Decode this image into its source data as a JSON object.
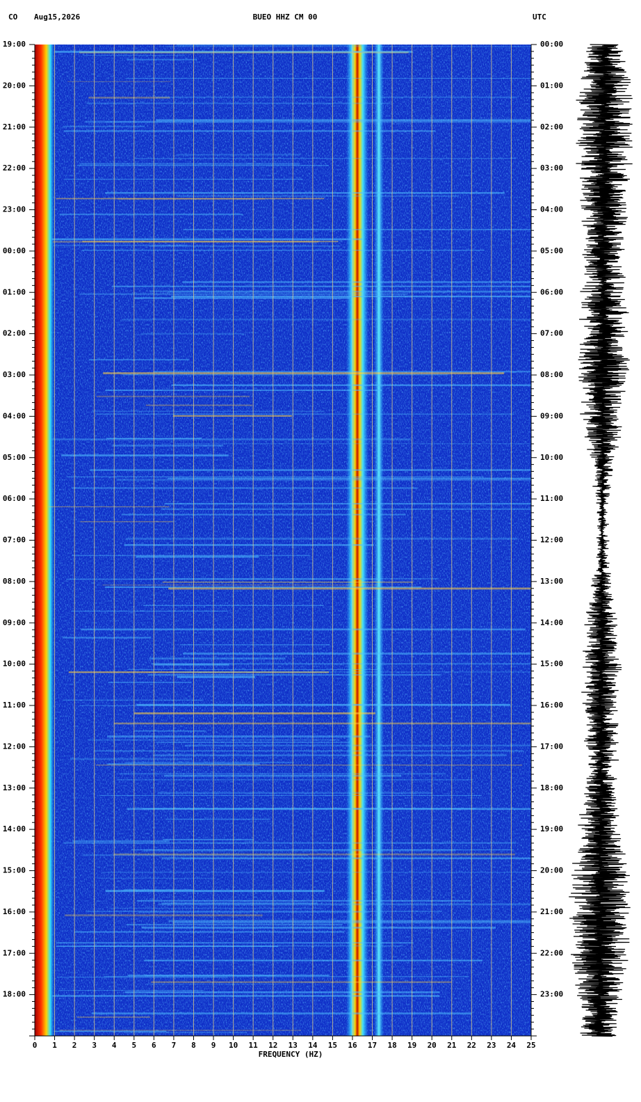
{
  "chart_data": {
    "type": "spectrogram",
    "network": "CO",
    "date": "Aug15,2026",
    "title": "BUEO HHZ CM 00",
    "timezone": "UTC",
    "xlabel": "FREQUENCY (HZ)",
    "xlim": [
      0,
      25
    ],
    "xticks": [
      0,
      1,
      2,
      3,
      4,
      5,
      6,
      7,
      8,
      9,
      10,
      11,
      12,
      13,
      14,
      15,
      16,
      17,
      18,
      19,
      20,
      21,
      22,
      23,
      24,
      25
    ],
    "left_times": [
      "19:00",
      "20:00",
      "21:00",
      "22:00",
      "23:00",
      "00:00",
      "01:00",
      "02:00",
      "03:00",
      "04:00",
      "05:00",
      "06:00",
      "07:00",
      "08:00",
      "09:00",
      "10:00",
      "11:00",
      "12:00",
      "13:00",
      "14:00",
      "15:00",
      "16:00",
      "17:00",
      "18:00"
    ],
    "right_times": [
      "00:00",
      "01:00",
      "02:00",
      "03:00",
      "04:00",
      "05:00",
      "06:00",
      "07:00",
      "08:00",
      "09:00",
      "10:00",
      "11:00",
      "12:00",
      "13:00",
      "14:00",
      "15:00",
      "16:00",
      "17:00",
      "18:00",
      "19:00",
      "20:00",
      "21:00",
      "22:00",
      "23:00"
    ]
  }
}
